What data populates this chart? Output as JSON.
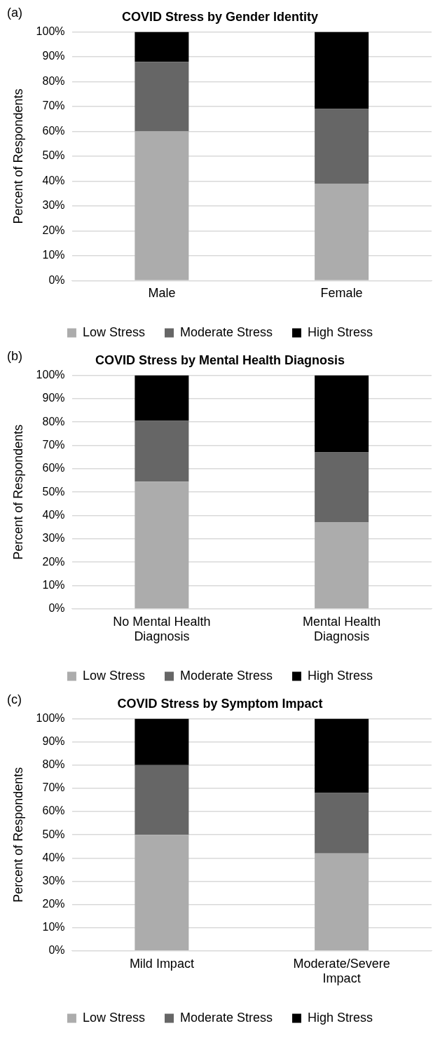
{
  "chart_data": [
    {
      "type": "bar",
      "title": "COVID Stress by Gender Identity",
      "ylabel": "Percent of Respondents",
      "annotations": [
        "(a)"
      ],
      "categories": [
        "Male",
        "Female"
      ],
      "stacked": true,
      "grid": "y",
      "legend": "bottom",
      "ylim": [
        0,
        100
      ],
      "yticks": [
        {
          "value": 0,
          "label": "0%"
        },
        {
          "value": 10,
          "label": "10%"
        },
        {
          "value": 20,
          "label": "20%"
        },
        {
          "value": 30,
          "label": "30%"
        },
        {
          "value": 40,
          "label": "40%"
        },
        {
          "value": 50,
          "label": "50%"
        },
        {
          "value": 60,
          "label": "60%"
        },
        {
          "value": 70,
          "label": "70%"
        },
        {
          "value": 80,
          "label": "80%"
        },
        {
          "value": 90,
          "label": "90%"
        },
        {
          "value": 100,
          "label": "100%"
        }
      ],
      "series": [
        {
          "name": "Low Stress",
          "color": "#acacac",
          "values": [
            60,
            39
          ]
        },
        {
          "name": "Moderate Stress",
          "color": "#666666",
          "values": [
            28,
            30
          ]
        },
        {
          "name": "High Stress",
          "color": "#000000",
          "values": [
            12,
            31
          ]
        }
      ]
    },
    {
      "type": "bar",
      "title": "COVID Stress by Mental Health Diagnosis",
      "ylabel": "Percent of Respondents",
      "annotations": [
        "(b)"
      ],
      "categories": [
        "No Mental Health Diagnosis",
        "Mental Health Diagnosis"
      ],
      "stacked": true,
      "grid": "y",
      "legend": "bottom",
      "ylim": [
        0,
        100
      ],
      "yticks": [
        {
          "value": 0,
          "label": "0%"
        },
        {
          "value": 10,
          "label": "10%"
        },
        {
          "value": 20,
          "label": "20%"
        },
        {
          "value": 30,
          "label": "30%"
        },
        {
          "value": 40,
          "label": "40%"
        },
        {
          "value": 50,
          "label": "50%"
        },
        {
          "value": 60,
          "label": "60%"
        },
        {
          "value": 70,
          "label": "70%"
        },
        {
          "value": 80,
          "label": "80%"
        },
        {
          "value": 90,
          "label": "90%"
        },
        {
          "value": 100,
          "label": "100%"
        }
      ],
      "series": [
        {
          "name": "Low Stress",
          "color": "#acacac",
          "values": [
            54.5,
            37
          ]
        },
        {
          "name": "Moderate Stress",
          "color": "#666666",
          "values": [
            26,
            30
          ]
        },
        {
          "name": "High Stress",
          "color": "#000000",
          "values": [
            19.5,
            33
          ]
        }
      ]
    },
    {
      "type": "bar",
      "title": "COVID Stress by Symptom Impact",
      "ylabel": "Percent of Respondents",
      "annotations": [
        "(c)"
      ],
      "categories": [
        "Mild Impact",
        "Moderate/Severe Impact"
      ],
      "stacked": true,
      "grid": "y",
      "legend": "bottom",
      "ylim": [
        0,
        100
      ],
      "yticks": [
        {
          "value": 0,
          "label": "0%"
        },
        {
          "value": 10,
          "label": "10%"
        },
        {
          "value": 20,
          "label": "20%"
        },
        {
          "value": 30,
          "label": "30%"
        },
        {
          "value": 40,
          "label": "40%"
        },
        {
          "value": 50,
          "label": "50%"
        },
        {
          "value": 60,
          "label": "60%"
        },
        {
          "value": 70,
          "label": "70%"
        },
        {
          "value": 80,
          "label": "80%"
        },
        {
          "value": 90,
          "label": "90%"
        },
        {
          "value": 100,
          "label": "100%"
        }
      ],
      "series": [
        {
          "name": "Low Stress",
          "color": "#acacac",
          "values": [
            50,
            42
          ]
        },
        {
          "name": "Moderate Stress",
          "color": "#666666",
          "values": [
            30,
            26
          ]
        },
        {
          "name": "High Stress",
          "color": "#000000",
          "values": [
            20,
            32
          ]
        }
      ]
    }
  ]
}
